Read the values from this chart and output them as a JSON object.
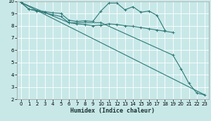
{
  "background_color": "#c8e8e8",
  "grid_color": "#ffffff",
  "line_color": "#2e7878",
  "xlabel": "Humidex (Indice chaleur)",
  "xlim": [
    -0.5,
    23.5
  ],
  "ylim": [
    2,
    10
  ],
  "xticks": [
    0,
    1,
    2,
    3,
    4,
    5,
    6,
    7,
    8,
    9,
    10,
    11,
    12,
    13,
    14,
    15,
    16,
    17,
    18,
    19,
    20,
    21,
    22,
    23
  ],
  "yticks": [
    2,
    3,
    4,
    5,
    6,
    7,
    8,
    9,
    10
  ],
  "series": [
    {
      "x": [
        0,
        1,
        2,
        3,
        4,
        5,
        6,
        7,
        8,
        9,
        10,
        11,
        12,
        13,
        14,
        15,
        16,
        17,
        18
      ],
      "y": [
        9.9,
        9.35,
        9.25,
        9.15,
        9.05,
        9.0,
        8.45,
        8.35,
        8.4,
        8.35,
        9.2,
        9.85,
        9.85,
        9.3,
        9.55,
        9.1,
        9.2,
        8.85,
        7.65
      ]
    },
    {
      "x": [
        0,
        1,
        2,
        3,
        4,
        5,
        6,
        7,
        8,
        9,
        10,
        11,
        12,
        13,
        14,
        15,
        16,
        17,
        18,
        19
      ],
      "y": [
        9.9,
        9.35,
        9.2,
        9.05,
        8.9,
        8.75,
        8.25,
        8.15,
        8.1,
        8.0,
        8.05,
        8.15,
        8.1,
        8.0,
        7.95,
        7.85,
        7.75,
        7.65,
        7.55,
        7.45
      ]
    },
    {
      "x": [
        0,
        6,
        10,
        19,
        20,
        21,
        22,
        23
      ],
      "y": [
        9.9,
        8.25,
        8.25,
        5.6,
        4.5,
        3.3,
        2.5,
        2.35
      ]
    },
    {
      "x": [
        0,
        23
      ],
      "y": [
        9.9,
        2.35
      ]
    }
  ]
}
